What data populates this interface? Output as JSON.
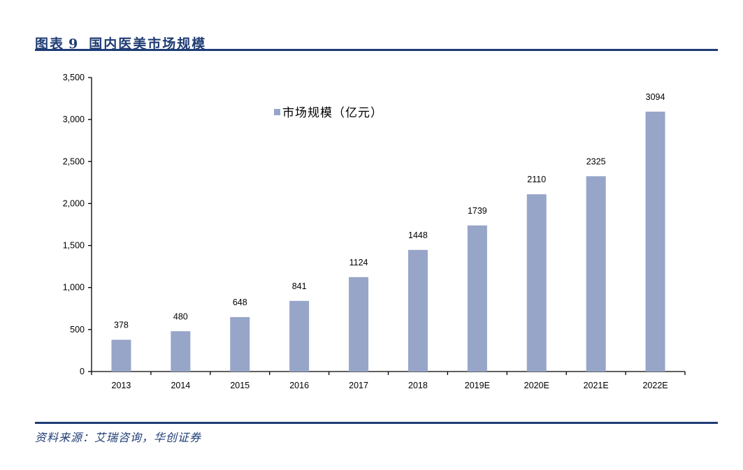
{
  "figure": {
    "label": "图表",
    "number": "9",
    "title": "国内医美市场规模",
    "source": "资料来源：艾瑞咨询，华创证券",
    "rule_color": "#1f3c74"
  },
  "chart_data": {
    "type": "bar",
    "title": "国内医美市场规模",
    "xlabel": "",
    "ylabel": "",
    "categories": [
      "2013",
      "2014",
      "2015",
      "2016",
      "2017",
      "2018",
      "2019E",
      "2020E",
      "2021E",
      "2022E"
    ],
    "series": [
      {
        "name": "市场规模（亿元）",
        "values": [
          378,
          480,
          648,
          841,
          1124,
          1448,
          1739,
          2110,
          2325,
          3094
        ],
        "color": "#97a5c9"
      }
    ],
    "ylim": [
      0,
      3500
    ],
    "yticks": [
      0,
      500,
      1000,
      1500,
      2000,
      2500,
      3000,
      3500
    ],
    "ytick_labels": [
      "0",
      "500",
      "1,000",
      "1,500",
      "2,000",
      "2,500",
      "3,000",
      "3,500"
    ],
    "data_labels": [
      "378",
      "480",
      "648",
      "841",
      "1124",
      "1448",
      "1739",
      "2110",
      "2325",
      "3094"
    ],
    "grid": false,
    "legend": {
      "position": "top-center-inside",
      "entries": [
        "市场规模（亿元）"
      ]
    }
  }
}
